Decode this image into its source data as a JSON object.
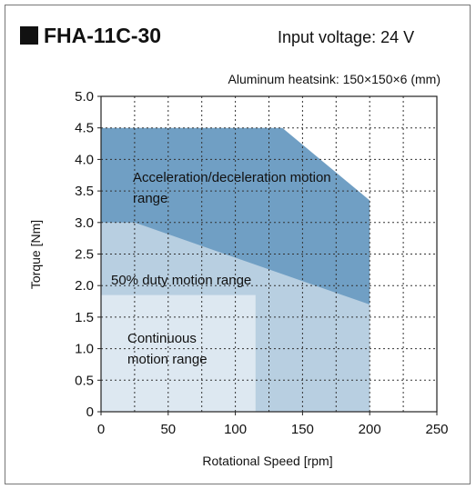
{
  "chart_data": {
    "type": "area",
    "title": "FHA-11C-30",
    "annotation": "Input voltage: 24 V",
    "subtitle": "Aluminum heatsink: 150×150×6 (mm)",
    "x_label": "Rotational Speed [rpm]",
    "y_label": "Torque [Nm]",
    "xlim": [
      0,
      250
    ],
    "ylim": [
      0,
      5
    ],
    "xticks": [
      0,
      50,
      100,
      150,
      200,
      250
    ],
    "x_minor_ticks": [
      25,
      75,
      125,
      175,
      225
    ],
    "yticks": [
      0,
      0.5,
      {
        "value": 1,
        "label": "1.0"
      },
      1.5,
      {
        "value": 2,
        "label": "2.0"
      },
      2.5,
      {
        "value": 3,
        "label": "3.0"
      },
      3.5,
      {
        "value": 4,
        "label": "4.0"
      },
      4.5,
      {
        "value": 5,
        "label": "5.0"
      }
    ],
    "grid": true,
    "series": [
      {
        "name": "Acceleration/deceleration motion range",
        "color": "#709fc4",
        "x": [
          0,
          0,
          135,
          200,
          200
        ],
        "values": [
          0,
          4.5,
          4.5,
          3.35,
          0
        ]
      },
      {
        "name": "50% duty motion range",
        "color": "#b8cfe1",
        "x": [
          0,
          0,
          25,
          200,
          200
        ],
        "values": [
          0,
          3.0,
          3.0,
          1.7,
          0
        ]
      },
      {
        "name": "Continuous motion range",
        "color": "#dde8f1",
        "x": [
          0,
          0,
          115,
          115
        ],
        "values": [
          0,
          1.85,
          1.85,
          0
        ]
      }
    ]
  }
}
